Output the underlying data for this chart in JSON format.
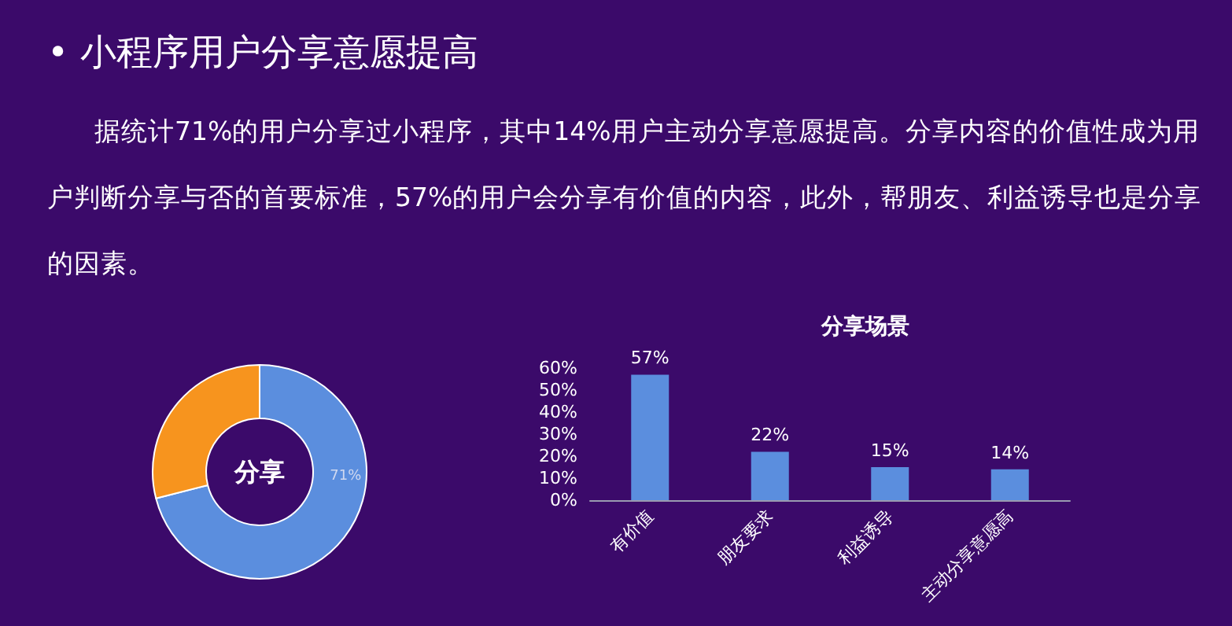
{
  "chart_data": [
    {
      "type": "other",
      "title": "• 小程序用户分享意愿提高",
      "subtitle": "据统计71%的用户分享过小程序，其中14%用户主动分享意愿提高。分享内容的价值性成为用户判断分享与否的首要标准，57%的用户会分享有价值的内容，此外，帮朋友、利益诱导也是分享的因素。"
    },
    {
      "type": "donut",
      "categories": [
        null,
        null
      ],
      "values": [
        71,
        29
      ],
      "colors": [
        "#5b8ede",
        "#f7941e"
      ],
      "value_labels": [
        "71%",
        null
      ],
      "annotations": [
        "分享"
      ]
    },
    {
      "type": "bar",
      "title": "分享场景",
      "categories": [
        "有价值",
        "朋友要求",
        "利益诱导",
        "主动分享意愿高"
      ],
      "values": [
        57,
        22,
        15,
        14
      ],
      "color": "#5b8ede",
      "value_labels": [
        "57%",
        "22%",
        "15%",
        "14%"
      ],
      "ylim": [
        0,
        60
      ],
      "yticks": [
        {
          "value": 0,
          "label": "0%"
        },
        {
          "value": 10,
          "label": "10%"
        },
        {
          "value": 20,
          "label": "20%"
        },
        {
          "value": 30,
          "label": "30%"
        },
        {
          "value": 40,
          "label": "40%"
        },
        {
          "value": 50,
          "label": "50%"
        },
        {
          "value": 60,
          "label": "60%"
        }
      ],
      "grid": false
    }
  ]
}
